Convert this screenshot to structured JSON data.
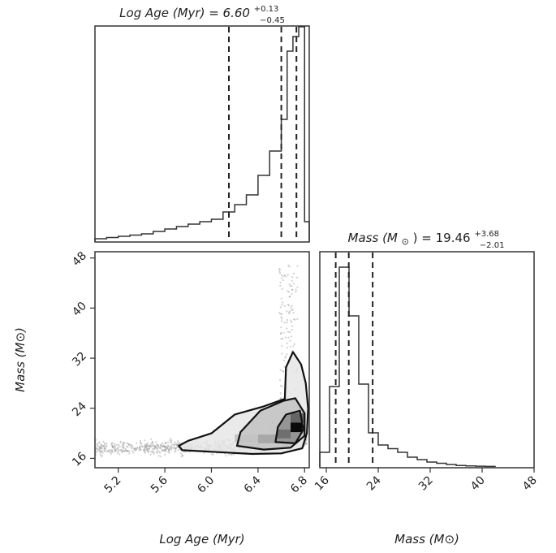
{
  "chart_data": [
    {
      "type": "histogram",
      "panel": "top-left",
      "title": {
        "prefix": "Log Age (Myr) = 6.60",
        "sup": "+0.13",
        "sub": "−0.45"
      },
      "xlim": [
        5.0,
        6.84
      ],
      "bin_edges": [
        5.0,
        5.1,
        5.2,
        5.3,
        5.4,
        5.5,
        5.6,
        5.7,
        5.8,
        5.9,
        6.0,
        6.1,
        6.2,
        6.3,
        6.4,
        6.5,
        6.6,
        6.65,
        6.7,
        6.75,
        6.8,
        6.84
      ],
      "counts": [
        0.01,
        0.015,
        0.02,
        0.025,
        0.03,
        0.04,
        0.05,
        0.06,
        0.07,
        0.08,
        0.09,
        0.12,
        0.15,
        0.19,
        0.27,
        0.37,
        0.5,
        0.78,
        0.84,
        0.88,
        0.08
      ],
      "quantiles": [
        6.15,
        6.6,
        6.73
      ]
    },
    {
      "type": "histogram",
      "panel": "bottom-right",
      "title": {
        "prefix": "Mass (M",
        "mid": ") = 19.46",
        "sup": "+3.68",
        "sub": "−2.01"
      },
      "xlabel": "Mass (M⊙)",
      "xlim": [
        15,
        48
      ],
      "xticks": [
        "16",
        "24",
        "32",
        "40",
        "48"
      ],
      "xtick_values": [
        16,
        24,
        32,
        40,
        48
      ],
      "bin_edges": [
        15,
        16.5,
        18,
        19.5,
        21,
        22.5,
        24,
        25.5,
        27,
        28.5,
        30,
        31.5,
        33,
        34.5,
        36,
        37.5,
        39,
        40.5,
        42
      ],
      "counts": [
        0.06,
        0.33,
        0.82,
        0.62,
        0.34,
        0.14,
        0.09,
        0.075,
        0.06,
        0.04,
        0.03,
        0.02,
        0.015,
        0.01,
        0.006,
        0.004,
        0.003,
        0.002
      ],
      "quantiles": [
        17.45,
        19.46,
        23.14
      ]
    },
    {
      "type": "scatter",
      "panel": "bottom-left",
      "xlabel": "Log Age (Myr)",
      "ylabel": "Mass (M⊙)",
      "xlim": [
        5.0,
        6.84
      ],
      "ylim": [
        14.5,
        49
      ],
      "xticks": [
        "5.2",
        "5.6",
        "6.0",
        "6.4",
        "6.8"
      ],
      "xtick_values": [
        5.2,
        5.6,
        6.0,
        6.4,
        6.8
      ],
      "yticks": [
        "16",
        "24",
        "32",
        "40",
        "48"
      ],
      "ytick_values": [
        16,
        24,
        32,
        40,
        48
      ],
      "contours": [
        [
          [
            5.75,
            17.3
          ],
          [
            6.05,
            17.0
          ],
          [
            6.35,
            16.7
          ],
          [
            6.6,
            16.8
          ],
          [
            6.78,
            17.6
          ],
          [
            6.82,
            20.0
          ],
          [
            6.83,
            24.0
          ],
          [
            6.81,
            28.0
          ],
          [
            6.77,
            31.0
          ],
          [
            6.7,
            33.0
          ],
          [
            6.64,
            30.5
          ],
          [
            6.63,
            25.5
          ],
          [
            6.45,
            24.3
          ],
          [
            6.2,
            23.0
          ],
          [
            6.0,
            20.0
          ],
          [
            5.8,
            18.8
          ],
          [
            5.72,
            18.0
          ]
        ],
        [
          [
            6.22,
            18.0
          ],
          [
            6.45,
            17.4
          ],
          [
            6.68,
            17.7
          ],
          [
            6.8,
            19.6
          ],
          [
            6.8,
            23.2
          ],
          [
            6.72,
            25.6
          ],
          [
            6.62,
            25.2
          ],
          [
            6.42,
            23.6
          ],
          [
            6.25,
            20.2
          ]
        ],
        [
          [
            6.55,
            18.6
          ],
          [
            6.72,
            18.4
          ],
          [
            6.79,
            20.6
          ],
          [
            6.76,
            23.6
          ],
          [
            6.64,
            23.0
          ],
          [
            6.57,
            21.0
          ]
        ]
      ],
      "density_cells": [
        {
          "x": [
            6.68,
            6.78
          ],
          "y": [
            20.2,
            21.7
          ],
          "level": 1.0
        },
        {
          "x": [
            6.56,
            6.68
          ],
          "y": [
            19.2,
            20.6
          ],
          "level": 0.55
        },
        {
          "x": [
            6.68,
            6.8
          ],
          "y": [
            21.7,
            23.2
          ],
          "level": 0.6
        },
        {
          "x": [
            6.4,
            6.56
          ],
          "y": [
            18.4,
            19.8
          ],
          "level": 0.3
        },
        {
          "x": [
            6.2,
            6.4
          ],
          "y": [
            18.6,
            19.8
          ],
          "level": 0.18
        }
      ]
    }
  ]
}
